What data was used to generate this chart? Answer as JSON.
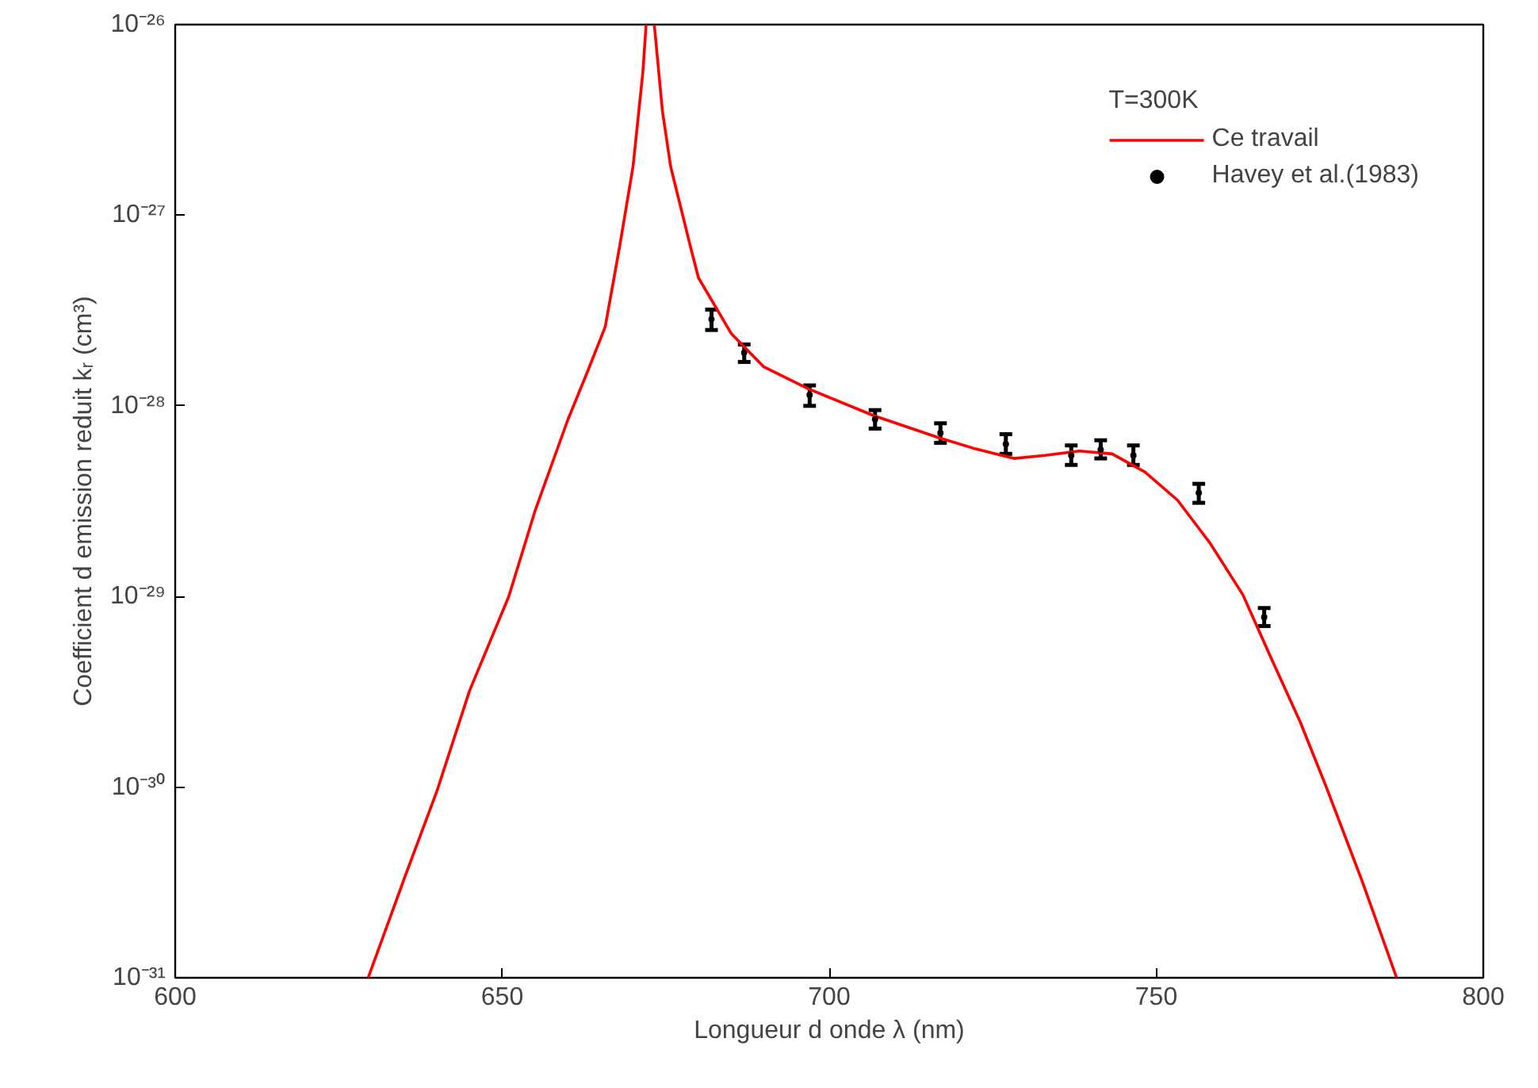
{
  "chart_data": {
    "type": "line",
    "xlabel": "Longueur d onde λ (nm)",
    "ylabel": "Coefficient d emission reduit kᵣ (cm³)",
    "legend_title": "T=300K",
    "legend": "top right",
    "log": "y",
    "grid": false,
    "xlim": [
      600,
      800
    ],
    "xticks": [
      600,
      650,
      700,
      750,
      800
    ],
    "ylim": [
      1e-31,
      1e-26
    ],
    "yticks": [
      {
        "value": 1e-31,
        "label": "10⁻³¹"
      },
      {
        "value": 1e-30,
        "label": "10⁻³⁰"
      },
      {
        "value": 1e-29,
        "label": "10⁻²⁹"
      },
      {
        "value": 1e-28,
        "label": "10⁻²⁸"
      },
      {
        "value": 1e-27,
        "label": "10⁻²⁷"
      },
      {
        "value": 1e-26,
        "label": "10⁻²⁶"
      }
    ],
    "series": [
      {
        "name": "Ce travail",
        "color": "#ff0000",
        "marker": "none",
        "line_style": "solid",
        "x": [
          629.5,
          635,
          640,
          645,
          651,
          655,
          660,
          663,
          665.75,
          668,
          670,
          671.5,
          672,
          672.6,
          673.25,
          674.5,
          675.75,
          678.75,
          680,
          685,
          690,
          696.75,
          706.75,
          716.75,
          722,
          728.25,
          733,
          738.25,
          743.25,
          748.25,
          753.25,
          758.25,
          763.25,
          767.5,
          772,
          776,
          781.5,
          786.75
        ],
        "values": [
          1e-31,
          3.3e-31,
          9.5e-31,
          3.2e-30,
          1e-29,
          2.8e-29,
          8.4e-29,
          1.5e-28,
          2.6e-28,
          7e-28,
          1.8e-27,
          5.6e-27,
          1e-26,
          null,
          1e-26,
          3.5e-27,
          1.8e-27,
          6.9e-28,
          4.7e-28,
          2.4e-28,
          1.6e-28,
          1.23e-28,
          8.9e-29,
          6.8e-29,
          6e-29,
          5.3e-29,
          5.5e-29,
          5.8e-29,
          5.6e-29,
          4.5e-29,
          3.2e-29,
          1.9e-29,
          1.02e-29,
          4.8e-30,
          2.2e-30,
          1e-30,
          3.2e-31,
          1e-31
        ]
      },
      {
        "name": "Havey et al.(1983)",
        "type": "scatter",
        "color": "#000000",
        "marker": "circle",
        "x": [
          682,
          687,
          697,
          707,
          717,
          727,
          737,
          741.5,
          746.5,
          756.5,
          766.5
        ],
        "values": [
          2.85e-28,
          1.9e-28,
          1.14e-28,
          8.5e-29,
          7.2e-29,
          6.3e-29,
          5.5e-29,
          5.9e-29,
          5.5e-29,
          3.5e-29,
          7.8e-30
        ],
        "errors": [
          [
            2.5e-28,
            3.2e-28
          ],
          [
            1.7e-28,
            2.1e-28
          ],
          [
            1e-28,
            1.28e-28
          ],
          [
            7.6e-29,
            9.5e-29
          ],
          [
            6.4e-29,
            8.1e-29
          ],
          [
            5.6e-29,
            7.1e-29
          ],
          [
            4.9e-29,
            6.2e-29
          ],
          [
            5.3e-29,
            6.6e-29
          ],
          [
            4.9e-29,
            6.2e-29
          ],
          [
            3.1e-29,
            3.9e-29
          ],
          [
            7e-30,
            8.7e-30
          ]
        ]
      }
    ]
  }
}
